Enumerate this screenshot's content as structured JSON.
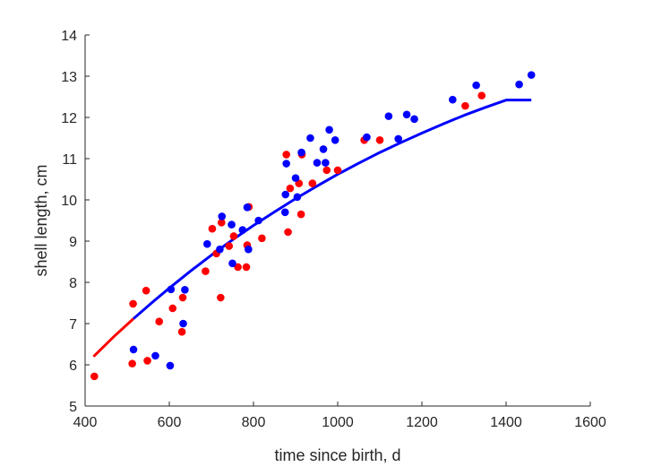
{
  "chart_data": {
    "type": "scatter",
    "xlabel": "time since birth, d",
    "ylabel": "shell length, cm",
    "xlim": [
      400,
      1600
    ],
    "ylim": [
      5,
      14
    ],
    "xticks": [
      400,
      600,
      800,
      1000,
      1200,
      1400,
      1600
    ],
    "yticks": [
      5,
      6,
      7,
      8,
      9,
      10,
      11,
      12,
      13,
      14
    ],
    "grid": false,
    "colors": {
      "series_red": "#ff0000",
      "series_blue": "#0000ff",
      "axis": "#262626"
    },
    "series": [
      {
        "color": "#ff0000",
        "points": [
          [
            422,
            5.72
          ],
          [
            512,
            6.03
          ],
          [
            514,
            7.48
          ],
          [
            548,
            6.1
          ],
          [
            545,
            7.8
          ],
          [
            576,
            7.05
          ],
          [
            608,
            7.37
          ],
          [
            630,
            6.8
          ],
          [
            632,
            7.63
          ],
          [
            686,
            8.27
          ],
          [
            702,
            9.3
          ],
          [
            712,
            8.7
          ],
          [
            722,
            7.63
          ],
          [
            724,
            9.45
          ],
          [
            742,
            8.88
          ],
          [
            753,
            9.12
          ],
          [
            763,
            8.37
          ],
          [
            783,
            8.37
          ],
          [
            785,
            8.9
          ],
          [
            789,
            9.83
          ],
          [
            820,
            9.07
          ],
          [
            878,
            11.1
          ],
          [
            882,
            9.22
          ],
          [
            887,
            10.28
          ],
          [
            908,
            10.4
          ],
          [
            913,
            9.65
          ],
          [
            915,
            11.1
          ],
          [
            940,
            10.4
          ],
          [
            974,
            10.72
          ],
          [
            1000,
            10.72
          ],
          [
            1063,
            11.45
          ],
          [
            1100,
            11.45
          ],
          [
            1303,
            12.28
          ],
          [
            1342,
            12.53
          ]
        ]
      },
      {
        "color": "#0000ff",
        "points": [
          [
            515,
            6.37
          ],
          [
            567,
            6.22
          ],
          [
            602,
            5.98
          ],
          [
            604,
            7.83
          ],
          [
            633,
            7.0
          ],
          [
            637,
            7.82
          ],
          [
            690,
            8.93
          ],
          [
            720,
            8.8
          ],
          [
            725,
            9.6
          ],
          [
            748,
            9.4
          ],
          [
            750,
            8.46
          ],
          [
            774,
            9.27
          ],
          [
            785,
            9.82
          ],
          [
            788,
            8.8
          ],
          [
            812,
            9.5
          ],
          [
            875,
            9.7
          ],
          [
            876,
            10.13
          ],
          [
            878,
            10.88
          ],
          [
            900,
            10.53
          ],
          [
            904,
            10.07
          ],
          [
            914,
            11.15
          ],
          [
            935,
            11.5
          ],
          [
            951,
            10.9
          ],
          [
            966,
            11.23
          ],
          [
            971,
            10.9
          ],
          [
            980,
            11.7
          ],
          [
            994,
            11.45
          ],
          [
            1069,
            11.52
          ],
          [
            1121,
            12.03
          ],
          [
            1144,
            11.48
          ],
          [
            1164,
            12.07
          ],
          [
            1182,
            11.96
          ],
          [
            1273,
            12.43
          ],
          [
            1329,
            12.78
          ],
          [
            1431,
            12.8
          ],
          [
            1460,
            13.03
          ]
        ]
      }
    ],
    "curves": [
      {
        "color": "#ff0000",
        "points": [
          [
            420,
            6.2
          ],
          [
            470,
            6.7
          ],
          [
            515,
            7.12
          ]
        ]
      },
      {
        "color": "#0000ff",
        "points": [
          [
            515,
            7.12
          ],
          [
            560,
            7.52
          ],
          [
            600,
            7.86
          ],
          [
            650,
            8.27
          ],
          [
            700,
            8.66
          ],
          [
            750,
            9.03
          ],
          [
            800,
            9.38
          ],
          [
            850,
            9.71
          ],
          [
            900,
            10.03
          ],
          [
            950,
            10.33
          ],
          [
            1000,
            10.62
          ],
          [
            1050,
            10.89
          ],
          [
            1100,
            11.15
          ],
          [
            1150,
            11.39
          ],
          [
            1200,
            11.62
          ],
          [
            1250,
            11.84
          ],
          [
            1300,
            12.05
          ],
          [
            1350,
            12.24
          ],
          [
            1400,
            12.42
          ],
          [
            1460,
            12.42
          ]
        ]
      }
    ]
  }
}
